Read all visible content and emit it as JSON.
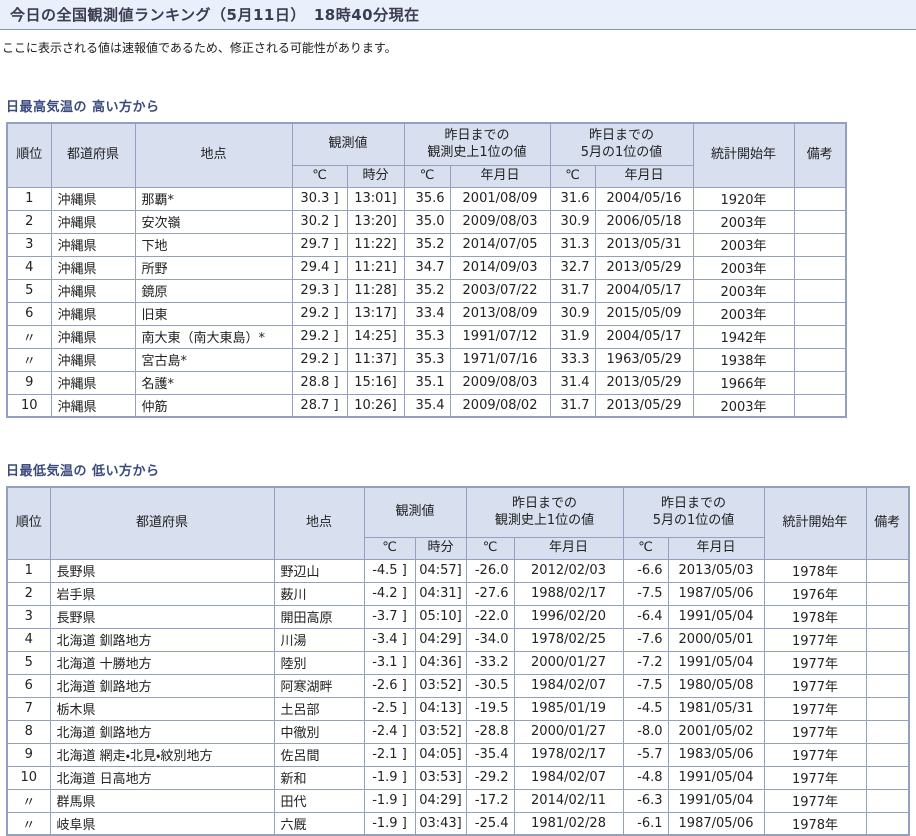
{
  "header": {
    "title": "今日の全国観測値ランキング（5月11日）　18時40分現在",
    "notice": "ここに表示される値は速報値であるため、修正される可能性があります。"
  },
  "table_columns": {
    "rank": "順位",
    "prefecture": "都道府県",
    "station": "地点",
    "observed_group": "観測値",
    "record_group": "昨日までの\n観測史上1位の値",
    "may_group": "昨日までの\n5月の1位の値",
    "celsius": "℃",
    "time": "時分",
    "date": "年月日",
    "start_year": "統計開始年",
    "remarks": "備考"
  },
  "max_temp_table": {
    "section_title": "日最高気温の 高い方から",
    "rows": [
      {
        "rank": "1",
        "prefecture": "沖縄県",
        "station": "那覇*",
        "temp": "30.3 ]",
        "time": "13:01]",
        "record_temp": "35.6",
        "record_date": "2001/08/09",
        "may_temp": "31.6",
        "may_date": "2004/05/16",
        "start_year": "1920年",
        "remarks": ""
      },
      {
        "rank": "2",
        "prefecture": "沖縄県",
        "station": "安次嶺",
        "temp": "30.2 ]",
        "time": "13:20]",
        "record_temp": "35.0",
        "record_date": "2009/08/03",
        "may_temp": "30.9",
        "may_date": "2006/05/18",
        "start_year": "2003年",
        "remarks": ""
      },
      {
        "rank": "3",
        "prefecture": "沖縄県",
        "station": "下地",
        "temp": "29.7 ]",
        "time": "11:22]",
        "record_temp": "35.2",
        "record_date": "2014/07/05",
        "may_temp": "31.3",
        "may_date": "2013/05/31",
        "start_year": "2003年",
        "remarks": ""
      },
      {
        "rank": "4",
        "prefecture": "沖縄県",
        "station": "所野",
        "temp": "29.4 ]",
        "time": "11:21]",
        "record_temp": "34.7",
        "record_date": "2014/09/03",
        "may_temp": "32.7",
        "may_date": "2013/05/29",
        "start_year": "2003年",
        "remarks": ""
      },
      {
        "rank": "5",
        "prefecture": "沖縄県",
        "station": "鏡原",
        "temp": "29.3 ]",
        "time": "11:28]",
        "record_temp": "35.2",
        "record_date": "2003/07/22",
        "may_temp": "31.7",
        "may_date": "2004/05/17",
        "start_year": "2003年",
        "remarks": ""
      },
      {
        "rank": "6",
        "prefecture": "沖縄県",
        "station": "旧東",
        "temp": "29.2 ]",
        "time": "13:17]",
        "record_temp": "33.4",
        "record_date": "2013/08/09",
        "may_temp": "30.9",
        "may_date": "2015/05/09",
        "start_year": "2003年",
        "remarks": ""
      },
      {
        "rank": "〃",
        "prefecture": "沖縄県",
        "station": "南大東（南大東島）*",
        "temp": "29.2 ]",
        "time": "14:25]",
        "record_temp": "35.3",
        "record_date": "1991/07/12",
        "may_temp": "31.9",
        "may_date": "2004/05/17",
        "start_year": "1942年",
        "remarks": ""
      },
      {
        "rank": "〃",
        "prefecture": "沖縄県",
        "station": "宮古島*",
        "temp": "29.2 ]",
        "time": "11:37]",
        "record_temp": "35.3",
        "record_date": "1971/07/16",
        "may_temp": "33.3",
        "may_date": "1963/05/29",
        "start_year": "1938年",
        "remarks": ""
      },
      {
        "rank": "9",
        "prefecture": "沖縄県",
        "station": "名護*",
        "temp": "28.8 ]",
        "time": "15:16]",
        "record_temp": "35.1",
        "record_date": "2009/08/03",
        "may_temp": "31.4",
        "may_date": "2013/05/29",
        "start_year": "1966年",
        "remarks": ""
      },
      {
        "rank": "10",
        "prefecture": "沖縄県",
        "station": "仲筋",
        "temp": "28.7 ]",
        "time": "10:26]",
        "record_temp": "35.4",
        "record_date": "2009/08/02",
        "may_temp": "31.7",
        "may_date": "2013/05/29",
        "start_year": "2003年",
        "remarks": ""
      }
    ]
  },
  "min_temp_table": {
    "section_title": "日最低気温の 低い方から",
    "rows": [
      {
        "rank": "1",
        "prefecture": "長野県",
        "station": "野辺山",
        "temp": "-4.5 ]",
        "time": "04:57]",
        "record_temp": "-26.0",
        "record_date": "2012/02/03",
        "may_temp": "-6.6",
        "may_date": "2013/05/03",
        "start_year": "1978年",
        "remarks": ""
      },
      {
        "rank": "2",
        "prefecture": "岩手県",
        "station": "薮川",
        "temp": "-4.2 ]",
        "time": "04:31]",
        "record_temp": "-27.6",
        "record_date": "1988/02/17",
        "may_temp": "-7.5",
        "may_date": "1987/05/06",
        "start_year": "1976年",
        "remarks": ""
      },
      {
        "rank": "3",
        "prefecture": "長野県",
        "station": "開田高原",
        "temp": "-3.7 ]",
        "time": "05:10]",
        "record_temp": "-22.0",
        "record_date": "1996/02/20",
        "may_temp": "-6.4",
        "may_date": "1991/05/04",
        "start_year": "1978年",
        "remarks": ""
      },
      {
        "rank": "4",
        "prefecture": "北海道 釧路地方",
        "station": "川湯",
        "temp": "-3.4 ]",
        "time": "04:29]",
        "record_temp": "-34.0",
        "record_date": "1978/02/25",
        "may_temp": "-7.6",
        "may_date": "2000/05/01",
        "start_year": "1977年",
        "remarks": ""
      },
      {
        "rank": "5",
        "prefecture": "北海道 十勝地方",
        "station": "陸別",
        "temp": "-3.1 ]",
        "time": "04:36]",
        "record_temp": "-33.2",
        "record_date": "2000/01/27",
        "may_temp": "-7.2",
        "may_date": "1991/05/04",
        "start_year": "1977年",
        "remarks": ""
      },
      {
        "rank": "6",
        "prefecture": "北海道 釧路地方",
        "station": "阿寒湖畔",
        "temp": "-2.6 ]",
        "time": "03:52]",
        "record_temp": "-30.5",
        "record_date": "1984/02/07",
        "may_temp": "-7.5",
        "may_date": "1980/05/08",
        "start_year": "1977年",
        "remarks": ""
      },
      {
        "rank": "7",
        "prefecture": "栃木県",
        "station": "土呂部",
        "temp": "-2.5 ]",
        "time": "04:13]",
        "record_temp": "-19.5",
        "record_date": "1985/01/19",
        "may_temp": "-4.5",
        "may_date": "1981/05/31",
        "start_year": "1977年",
        "remarks": ""
      },
      {
        "rank": "8",
        "prefecture": "北海道 釧路地方",
        "station": "中徹別",
        "temp": "-2.4 ]",
        "time": "03:52]",
        "record_temp": "-28.8",
        "record_date": "2000/01/27",
        "may_temp": "-8.0",
        "may_date": "2001/05/02",
        "start_year": "1977年",
        "remarks": ""
      },
      {
        "rank": "9",
        "prefecture": "北海道 網走・北見・紋別地方",
        "station": "佐呂間",
        "temp": "-2.1 ]",
        "time": "04:05]",
        "record_temp": "-35.4",
        "record_date": "1978/02/17",
        "may_temp": "-5.7",
        "may_date": "1983/05/06",
        "start_year": "1977年",
        "remarks": ""
      },
      {
        "rank": "10",
        "prefecture": "北海道 日高地方",
        "station": "新和",
        "temp": "-1.9 ]",
        "time": "03:53]",
        "record_temp": "-29.2",
        "record_date": "1984/02/07",
        "may_temp": "-4.8",
        "may_date": "1991/05/04",
        "start_year": "1977年",
        "remarks": ""
      },
      {
        "rank": "〃",
        "prefecture": "群馬県",
        "station": "田代",
        "temp": "-1.9 ]",
        "time": "04:29]",
        "record_temp": "-17.2",
        "record_date": "2014/02/11",
        "may_temp": "-6.3",
        "may_date": "1991/05/04",
        "start_year": "1977年",
        "remarks": ""
      },
      {
        "rank": "〃",
        "prefecture": "岐阜県",
        "station": "六厩",
        "temp": "-1.9 ]",
        "time": "03:43]",
        "record_temp": "-25.4",
        "record_date": "1981/02/28",
        "may_temp": "-6.1",
        "may_date": "1987/05/06",
        "start_year": "1978年",
        "remarks": ""
      }
    ]
  }
}
